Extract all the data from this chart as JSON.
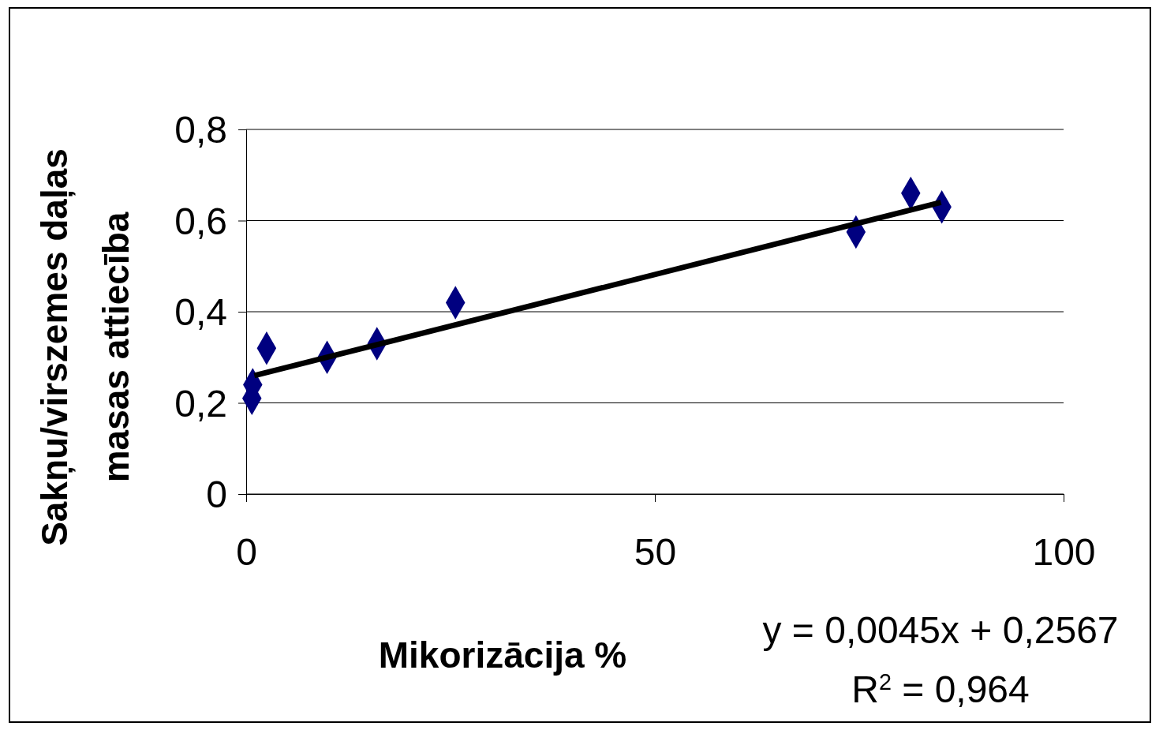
{
  "chart_data": {
    "type": "scatter",
    "xlabel": "Mikorizācija %",
    "ylabel": "Sakņu/virszemes daļas\nmasas attiecība",
    "xlim": [
      0,
      100
    ],
    "xticks": [
      0,
      50,
      100
    ],
    "ylim": [
      0,
      0.8
    ],
    "yticks": [
      {
        "value": 0,
        "label": "0"
      },
      {
        "value": 0.2,
        "label": "0,2"
      },
      {
        "value": 0.4,
        "label": "0,4"
      },
      {
        "value": 0.6,
        "label": "0,6"
      },
      {
        "value": 0.8,
        "label": "0,8"
      }
    ],
    "grid": "y",
    "series": [
      {
        "marker": "diamond",
        "color": "#000080",
        "x": [
          0.7,
          0.8,
          2.5,
          9.9,
          16.0,
          25.6,
          74.6,
          81.3,
          85.1
        ],
        "values": [
          0.21,
          0.24,
          0.32,
          0.3,
          0.33,
          0.42,
          0.575,
          0.66,
          0.63
        ]
      },
      {
        "type": "line",
        "marker": "none",
        "color": "#000000",
        "x": [
          1,
          85
        ],
        "values": [
          0.26,
          0.64
        ],
        "line_style": "solid"
      }
    ],
    "annotations": [
      "y = 0,0045x + 0,2567",
      "R$^{2}$ = 0,964"
    ]
  }
}
